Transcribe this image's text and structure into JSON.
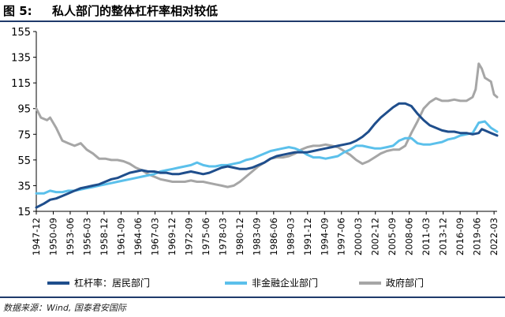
{
  "header": {
    "fig_label": "图 5:",
    "fig_title": "私人部门的整体杠杆率相对较低"
  },
  "source": "数据来源：Wind, 国泰君安国际",
  "chart_data": {
    "type": "line",
    "title": "私人部门的整体杠杆率相对较低",
    "xlabel": "",
    "ylabel": "",
    "ylim": [
      15,
      155
    ],
    "yticks": [
      15,
      35,
      55,
      75,
      95,
      115,
      135,
      155
    ],
    "x_range": [
      1947.75,
      2023.0
    ],
    "grid": false,
    "legend_position": "bottom",
    "x_tick_labels": [
      "1947-12",
      "1950-09",
      "1953-06",
      "1956-03",
      "1958-12",
      "1961-09",
      "1964-06",
      "1967-03",
      "1969-12",
      "1972-09",
      "1975-06",
      "1978-03",
      "1980-12",
      "1983-09",
      "1986-06",
      "1989-03",
      "1991-12",
      "1994-09",
      "1997-06",
      "2000-03",
      "2002-12",
      "2005-09",
      "2008-06",
      "2011-03",
      "2013-12",
      "2016-09",
      "2019-06",
      "2022-03"
    ],
    "series": [
      {
        "name": "杠杆率：居民部门",
        "color": "#1f4e8c",
        "points": [
          [
            1947.75,
            18
          ],
          [
            1949,
            21
          ],
          [
            1950,
            24
          ],
          [
            1951,
            25
          ],
          [
            1952,
            27
          ],
          [
            1953,
            29
          ],
          [
            1954,
            31
          ],
          [
            1955,
            33
          ],
          [
            1956,
            34
          ],
          [
            1957,
            35
          ],
          [
            1958,
            36
          ],
          [
            1959,
            38
          ],
          [
            1960,
            40
          ],
          [
            1961,
            41
          ],
          [
            1962,
            43
          ],
          [
            1963,
            45
          ],
          [
            1964,
            46
          ],
          [
            1965,
            47
          ],
          [
            1966,
            46
          ],
          [
            1967,
            46
          ],
          [
            1968,
            45
          ],
          [
            1969,
            45
          ],
          [
            1970,
            44
          ],
          [
            1971,
            44
          ],
          [
            1972,
            45
          ],
          [
            1973,
            46
          ],
          [
            1974,
            45
          ],
          [
            1975,
            44
          ],
          [
            1976,
            45
          ],
          [
            1977,
            47
          ],
          [
            1978,
            49
          ],
          [
            1979,
            50
          ],
          [
            1980,
            49
          ],
          [
            1981,
            48
          ],
          [
            1982,
            48
          ],
          [
            1983,
            49
          ],
          [
            1984,
            51
          ],
          [
            1985,
            53
          ],
          [
            1986,
            56
          ],
          [
            1987,
            58
          ],
          [
            1988,
            59
          ],
          [
            1989,
            60
          ],
          [
            1990,
            61
          ],
          [
            1991,
            61
          ],
          [
            1992,
            61
          ],
          [
            1993,
            62
          ],
          [
            1994,
            63
          ],
          [
            1995,
            64
          ],
          [
            1996,
            65
          ],
          [
            1997,
            66
          ],
          [
            1998,
            67
          ],
          [
            1999,
            68
          ],
          [
            2000,
            70
          ],
          [
            2001,
            73
          ],
          [
            2002,
            77
          ],
          [
            2003,
            83
          ],
          [
            2004,
            88
          ],
          [
            2005,
            92
          ],
          [
            2006,
            96
          ],
          [
            2007,
            99
          ],
          [
            2008,
            99
          ],
          [
            2009,
            97
          ],
          [
            2010,
            91
          ],
          [
            2011,
            86
          ],
          [
            2012,
            82
          ],
          [
            2013,
            80
          ],
          [
            2014,
            78
          ],
          [
            2015,
            77
          ],
          [
            2016,
            77
          ],
          [
            2017,
            76
          ],
          [
            2018,
            76
          ],
          [
            2019,
            75
          ],
          [
            2020,
            76
          ],
          [
            2020.5,
            79
          ],
          [
            2021,
            78
          ],
          [
            2022,
            76
          ],
          [
            2023,
            74
          ]
        ]
      },
      {
        "name": "非金融企业部门",
        "color": "#5bc0eb",
        "points": [
          [
            1947.75,
            29
          ],
          [
            1949,
            29
          ],
          [
            1950,
            31
          ],
          [
            1951,
            30
          ],
          [
            1952,
            30
          ],
          [
            1953,
            31
          ],
          [
            1954,
            31
          ],
          [
            1955,
            32
          ],
          [
            1956,
            33
          ],
          [
            1957,
            34
          ],
          [
            1958,
            35
          ],
          [
            1959,
            36
          ],
          [
            1960,
            37
          ],
          [
            1961,
            38
          ],
          [
            1962,
            39
          ],
          [
            1963,
            40
          ],
          [
            1964,
            41
          ],
          [
            1965,
            42
          ],
          [
            1966,
            43
          ],
          [
            1967,
            44
          ],
          [
            1968,
            46
          ],
          [
            1969,
            47
          ],
          [
            1970,
            48
          ],
          [
            1971,
            49
          ],
          [
            1972,
            50
          ],
          [
            1973,
            51
          ],
          [
            1974,
            53
          ],
          [
            1975,
            51
          ],
          [
            1976,
            50
          ],
          [
            1977,
            50
          ],
          [
            1978,
            51
          ],
          [
            1979,
            51
          ],
          [
            1980,
            52
          ],
          [
            1981,
            53
          ],
          [
            1982,
            55
          ],
          [
            1983,
            56
          ],
          [
            1984,
            58
          ],
          [
            1985,
            60
          ],
          [
            1986,
            62
          ],
          [
            1987,
            63
          ],
          [
            1988,
            64
          ],
          [
            1989,
            65
          ],
          [
            1990,
            64
          ],
          [
            1991,
            62
          ],
          [
            1992,
            59
          ],
          [
            1993,
            57
          ],
          [
            1994,
            57
          ],
          [
            1995,
            56
          ],
          [
            1996,
            57
          ],
          [
            1997,
            58
          ],
          [
            1998,
            61
          ],
          [
            1999,
            63
          ],
          [
            2000,
            66
          ],
          [
            2001,
            66
          ],
          [
            2002,
            65
          ],
          [
            2003,
            64
          ],
          [
            2004,
            64
          ],
          [
            2005,
            65
          ],
          [
            2006,
            66
          ],
          [
            2007,
            70
          ],
          [
            2008,
            72
          ],
          [
            2009,
            72
          ],
          [
            2010,
            68
          ],
          [
            2011,
            67
          ],
          [
            2012,
            67
          ],
          [
            2013,
            68
          ],
          [
            2014,
            69
          ],
          [
            2015,
            71
          ],
          [
            2016,
            72
          ],
          [
            2017,
            74
          ],
          [
            2018,
            75
          ],
          [
            2019,
            76
          ],
          [
            2020,
            84
          ],
          [
            2021,
            85
          ],
          [
            2022,
            80
          ],
          [
            2023,
            77
          ]
        ]
      },
      {
        "name": "政府部门",
        "color": "#a6a6a6",
        "points": [
          [
            1947.75,
            95
          ],
          [
            1948.5,
            88
          ],
          [
            1949.5,
            86
          ],
          [
            1950,
            88
          ],
          [
            1951,
            80
          ],
          [
            1952,
            70
          ],
          [
            1953,
            68
          ],
          [
            1954,
            66
          ],
          [
            1955,
            68
          ],
          [
            1956,
            63
          ],
          [
            1957,
            60
          ],
          [
            1958,
            56
          ],
          [
            1959,
            56
          ],
          [
            1960,
            55
          ],
          [
            1961,
            55
          ],
          [
            1962,
            54
          ],
          [
            1963,
            52
          ],
          [
            1964,
            49
          ],
          [
            1965,
            47
          ],
          [
            1966,
            44
          ],
          [
            1967,
            42
          ],
          [
            1968,
            40
          ],
          [
            1969,
            39
          ],
          [
            1970,
            38
          ],
          [
            1971,
            38
          ],
          [
            1972,
            38
          ],
          [
            1973,
            39
          ],
          [
            1974,
            38
          ],
          [
            1975,
            38
          ],
          [
            1976,
            37
          ],
          [
            1977,
            36
          ],
          [
            1978,
            35
          ],
          [
            1979,
            34
          ],
          [
            1980,
            35
          ],
          [
            1981,
            38
          ],
          [
            1982,
            42
          ],
          [
            1983,
            46
          ],
          [
            1984,
            50
          ],
          [
            1985,
            53
          ],
          [
            1986,
            56
          ],
          [
            1987,
            57
          ],
          [
            1988,
            57
          ],
          [
            1989,
            58
          ],
          [
            1990,
            60
          ],
          [
            1991,
            63
          ],
          [
            1992,
            65
          ],
          [
            1993,
            66
          ],
          [
            1994,
            66
          ],
          [
            1995,
            67
          ],
          [
            1996,
            66
          ],
          [
            1997,
            65
          ],
          [
            1998,
            62
          ],
          [
            1999,
            59
          ],
          [
            2000,
            55
          ],
          [
            2001,
            52
          ],
          [
            2002,
            54
          ],
          [
            2003,
            57
          ],
          [
            2004,
            60
          ],
          [
            2005,
            62
          ],
          [
            2006,
            63
          ],
          [
            2007,
            63
          ],
          [
            2008,
            66
          ],
          [
            2009,
            76
          ],
          [
            2010,
            85
          ],
          [
            2011,
            95
          ],
          [
            2012,
            100
          ],
          [
            2013,
            103
          ],
          [
            2014,
            101
          ],
          [
            2015,
            101
          ],
          [
            2016,
            102
          ],
          [
            2017,
            101
          ],
          [
            2018,
            101
          ],
          [
            2019,
            104
          ],
          [
            2019.5,
            110
          ],
          [
            2020,
            130
          ],
          [
            2020.5,
            126
          ],
          [
            2021,
            119
          ],
          [
            2022,
            116
          ],
          [
            2022.5,
            106
          ],
          [
            2023,
            104
          ]
        ]
      }
    ]
  }
}
